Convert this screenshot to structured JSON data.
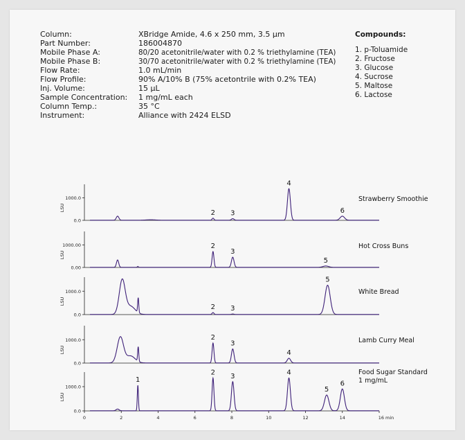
{
  "conditions": [
    {
      "label": "Column:",
      "value": "XBridge Amide, 4.6 x 250 mm, 3.5 µm"
    },
    {
      "label": "Part Number:",
      "value": "186004870"
    },
    {
      "label": "Mobile Phase A:",
      "value": "80/20 acetonitrile/water with 0.2 % triethylamine (TEA)"
    },
    {
      "label": "Mobile Phase B:",
      "value": "30/70 acetonitrile/water with 0.2 % triethylamine (TEA)"
    },
    {
      "label": "Flow Rate:",
      "value": "1.0 mL/min"
    },
    {
      "label": "Flow Profile:",
      "value": "90% A/10% B (75% acetontrile with 0.2% TEA)"
    },
    {
      "label": "Inj. Volume:",
      "value": "15 µL"
    },
    {
      "label": "Sample Concentration:",
      "value": "1 mg/mL each"
    },
    {
      "label": "Column Temp.:",
      "value": "35 °C"
    },
    {
      "label": "Instrument:",
      "value": "Alliance with 2424 ELSD"
    }
  ],
  "compounds": {
    "title": "Compounds:",
    "items": [
      "1. p-Toluamide",
      "2. Fructose",
      "3. Glucose",
      "4. Sucrose",
      "5. Maltose",
      "6. Lactose"
    ]
  },
  "colors": {
    "trace": "#3d1f78",
    "axis": "#222222"
  },
  "chart_data": {
    "type": "line",
    "xlim": [
      0,
      16
    ],
    "x_ticks": [
      "0",
      "2",
      "4",
      "6",
      "8",
      "10",
      "12",
      "14",
      "16 min"
    ],
    "panels": [
      {
        "name": "Strawberry Smoothie",
        "ylabel": "LSU",
        "y_ticks": [
          "1000.0",
          "0.0"
        ],
        "ylim": [
          0,
          1600
        ],
        "peaks": [
          {
            "t": 1.8,
            "h": 180,
            "w": 0.07,
            "label": ""
          },
          {
            "t": 3.6,
            "h": 20,
            "w": 0.25,
            "label": ""
          },
          {
            "t": 6.98,
            "h": 90,
            "w": 0.05,
            "label": "2"
          },
          {
            "t": 8.05,
            "h": 70,
            "w": 0.07,
            "label": "3"
          },
          {
            "t": 11.1,
            "h": 1400,
            "w": 0.08,
            "label": "4"
          },
          {
            "t": 14.0,
            "h": 180,
            "w": 0.12,
            "label": "6"
          }
        ]
      },
      {
        "name": "Hot Cross Buns",
        "ylabel": "LSU",
        "y_ticks": [
          "1000.00",
          "0.00"
        ],
        "ylim": [
          0,
          1600
        ],
        "peaks": [
          {
            "t": 1.8,
            "h": 330,
            "w": 0.06,
            "label": ""
          },
          {
            "t": 2.9,
            "h": 40,
            "w": 0.03,
            "label": ""
          },
          {
            "t": 6.98,
            "h": 700,
            "w": 0.05,
            "label": "2"
          },
          {
            "t": 8.05,
            "h": 450,
            "w": 0.07,
            "label": "3"
          },
          {
            "t": 13.1,
            "h": 60,
            "w": 0.15,
            "label": "5"
          }
        ]
      },
      {
        "name": "White Bread",
        "ylabel": "LSU",
        "y_ticks": [
          "1000.0",
          "0.0"
        ],
        "ylim": [
          0,
          1600
        ],
        "peaks": [
          {
            "t": 2.05,
            "h": 1450,
            "w": 0.16,
            "label": ""
          },
          {
            "t": 2.5,
            "h": 350,
            "w": 0.25,
            "label": ""
          },
          {
            "t": 2.92,
            "h": 630,
            "w": 0.03,
            "label": ""
          },
          {
            "t": 6.98,
            "h": 80,
            "w": 0.05,
            "label": "2"
          },
          {
            "t": 8.05,
            "h": 20,
            "w": 0.06,
            "label": "3"
          },
          {
            "t": 13.2,
            "h": 1250,
            "w": 0.14,
            "label": "5"
          }
        ]
      },
      {
        "name": "Lamb Curry Meal",
        "ylabel": "LSU",
        "y_ticks": [
          "1000.0",
          "0.0"
        ],
        "ylim": [
          0,
          1600
        ],
        "peaks": [
          {
            "t": 1.95,
            "h": 1100,
            "w": 0.17,
            "label": ""
          },
          {
            "t": 2.5,
            "h": 300,
            "w": 0.25,
            "label": ""
          },
          {
            "t": 2.92,
            "h": 620,
            "w": 0.03,
            "label": ""
          },
          {
            "t": 6.98,
            "h": 850,
            "w": 0.05,
            "label": "2"
          },
          {
            "t": 8.05,
            "h": 600,
            "w": 0.07,
            "label": "3"
          },
          {
            "t": 11.1,
            "h": 200,
            "w": 0.09,
            "label": "4"
          }
        ]
      },
      {
        "name": "Food Sugar Standard 1 mg/mL",
        "ylabel": "LSU",
        "y_ticks": [
          "1000.0",
          "0.0"
        ],
        "ylim": [
          0,
          1600
        ],
        "peaks": [
          {
            "t": 1.8,
            "h": 70,
            "w": 0.08,
            "label": ""
          },
          {
            "t": 2.9,
            "h": 1050,
            "w": 0.03,
            "label": "1"
          },
          {
            "t": 6.98,
            "h": 1350,
            "w": 0.05,
            "label": "2"
          },
          {
            "t": 8.05,
            "h": 1200,
            "w": 0.07,
            "label": "3"
          },
          {
            "t": 11.1,
            "h": 1350,
            "w": 0.08,
            "label": "4"
          },
          {
            "t": 13.15,
            "h": 650,
            "w": 0.12,
            "label": "5"
          },
          {
            "t": 14.0,
            "h": 900,
            "w": 0.11,
            "label": "6"
          }
        ]
      }
    ]
  }
}
